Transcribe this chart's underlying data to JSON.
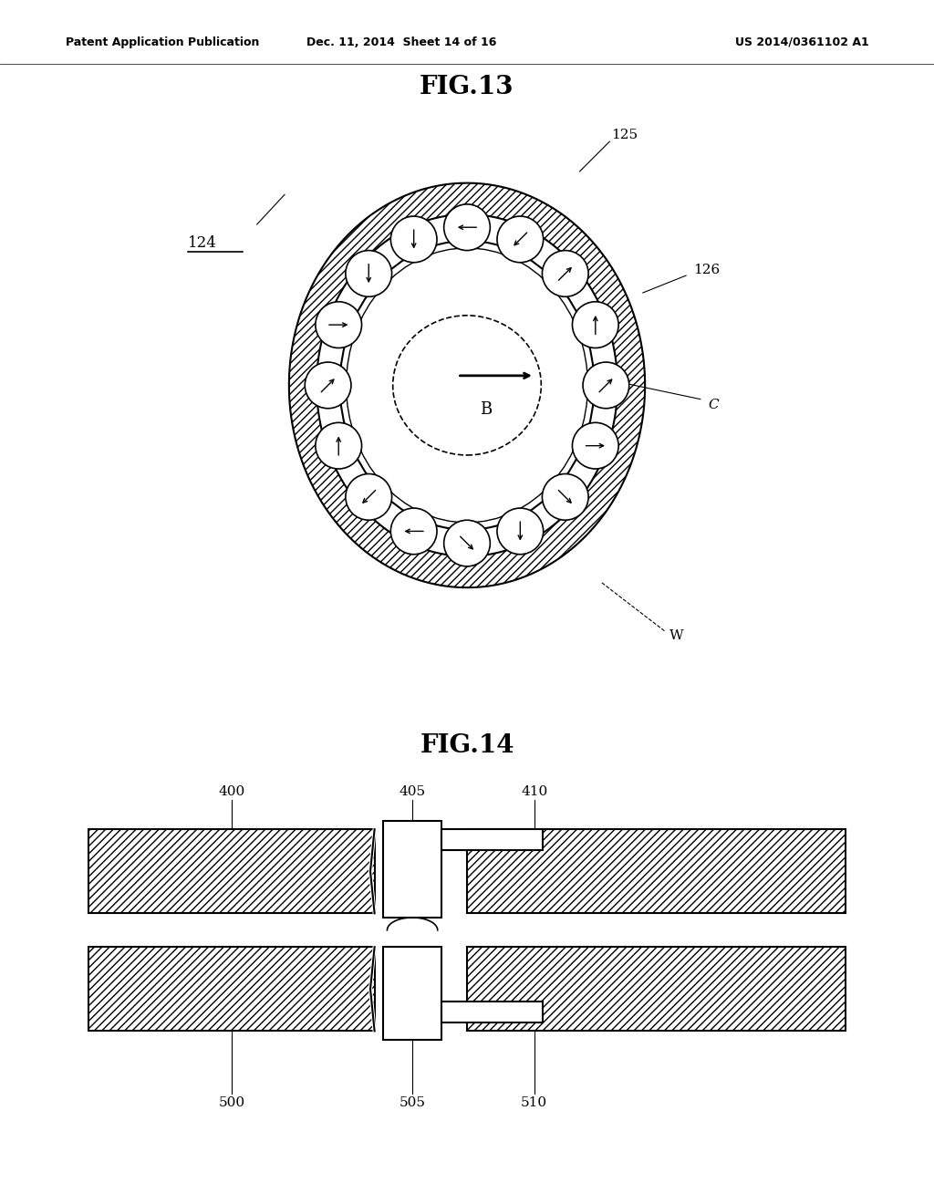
{
  "fig13_title": "FIG.13",
  "fig14_title": "FIG.14",
  "header_left": "Patent Application Publication",
  "header_mid": "Dec. 11, 2014  Sheet 14 of 16",
  "header_right": "US 2014/0361102 A1",
  "label_124": "124",
  "label_125": "125",
  "label_126": "126",
  "label_C": "C",
  "label_B": "B",
  "label_W": "W",
  "label_400": "400",
  "label_405": "405",
  "label_410": "410",
  "label_500": "500",
  "label_505": "505",
  "label_510": "510",
  "bg_color": "#ffffff",
  "line_color": "#000000",
  "n_ovals": 16,
  "R_outer": 0.42,
  "R_hatch_inner": 0.355,
  "R_inner_circle": 0.3,
  "R_inner_circle2": 0.285,
  "R_oval_center": 0.328,
  "R_dash_x": 0.175,
  "R_dash_y": 0.145,
  "oval_r": 0.048,
  "arrow_angles_deg": [
    225,
    180,
    315,
    90,
    225,
    0,
    315,
    270,
    225,
    180,
    315,
    90,
    225,
    0,
    270,
    270
  ]
}
